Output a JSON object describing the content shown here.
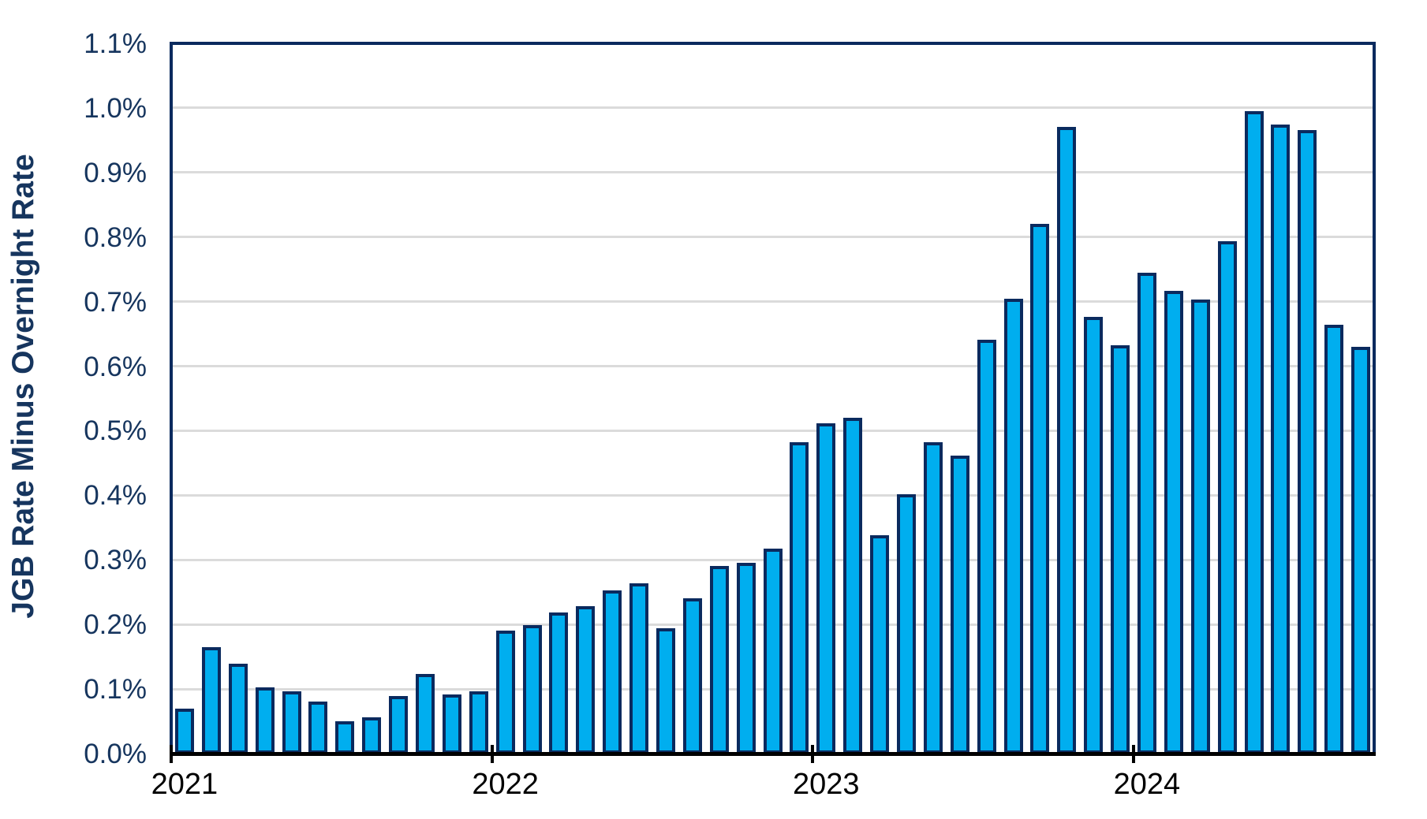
{
  "chart_data": {
    "type": "bar",
    "title": "",
    "ylabel": "JGB Rate Minus Overnight Rate",
    "xlabel": "",
    "unit": "percent",
    "frequency": "monthly",
    "ylim": [
      0,
      1.1
    ],
    "y_tick_interval": 0.1,
    "y_tick_labels": [
      "0.0%",
      "0.1%",
      "0.2%",
      "0.3%",
      "0.4%",
      "0.5%",
      "0.6%",
      "0.7%",
      "0.8%",
      "0.9%",
      "1.0%",
      "1.1%"
    ],
    "x_tick_labels": [
      "2021",
      "2022",
      "2023",
      "2024"
    ],
    "grid": "horizontal-only",
    "legend": "none",
    "categories": [
      "Jan 2021",
      "Feb 2021",
      "Mar 2021",
      "Apr 2021",
      "May 2021",
      "Jun 2021",
      "Jul 2021",
      "Aug 2021",
      "Sep 2021",
      "Oct 2021",
      "Nov 2021",
      "Dec 2021",
      "Jan 2022",
      "Feb 2022",
      "Mar 2022",
      "Apr 2022",
      "May 2022",
      "Jun 2022",
      "Jul 2022",
      "Aug 2022",
      "Sep 2022",
      "Oct 2022",
      "Nov 2022",
      "Dec 2022",
      "Jan 2023",
      "Feb 2023",
      "Mar 2023",
      "Apr 2023",
      "May 2023",
      "Jun 2023",
      "Jul 2023",
      "Aug 2023",
      "Sep 2023",
      "Oct 2023",
      "Nov 2023",
      "Dec 2023",
      "Jan 2024",
      "Feb 2024",
      "Mar 2024",
      "Apr 2024",
      "May 2024",
      "Jun 2024",
      "Jul 2024",
      "Aug 2024",
      "Sep 2024"
    ],
    "values": [
      0.07,
      0.165,
      0.139,
      0.103,
      0.097,
      0.08,
      0.05,
      0.056,
      0.089,
      0.123,
      0.091,
      0.097,
      0.19,
      0.199,
      0.219,
      0.228,
      0.253,
      0.264,
      0.194,
      0.24,
      0.29,
      0.296,
      0.318,
      0.482,
      0.512,
      0.52,
      0.338,
      0.402,
      0.482,
      0.462,
      0.641,
      0.704,
      0.82,
      0.97,
      0.676,
      0.632,
      0.745,
      0.717,
      0.703,
      0.793,
      0.995,
      0.974,
      0.966,
      0.664,
      0.63
    ],
    "colors": {
      "bar_fill": "#00AEEF",
      "bar_border": "#0A2A5E",
      "plot_border": "#0A2A5E",
      "gridline": "#DBDBDB",
      "x_axis_line": "#000000",
      "y_tick_text": "#16355E",
      "x_tick_text": "#000000",
      "y_axis_title_text": "#16355E"
    }
  }
}
